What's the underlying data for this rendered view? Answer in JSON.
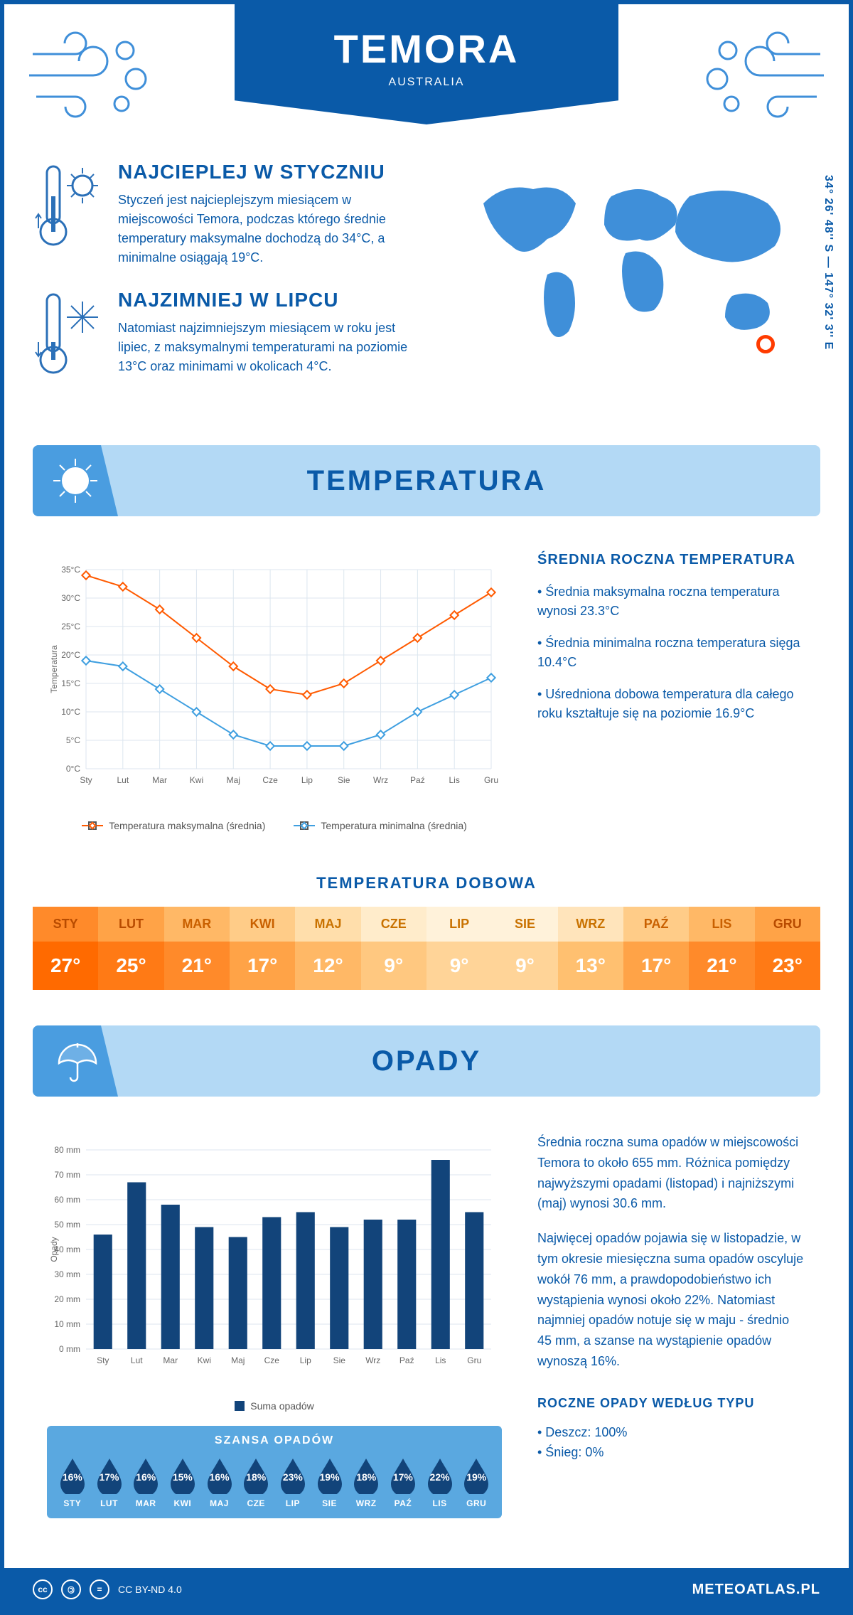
{
  "header": {
    "title": "TEMORA",
    "subtitle": "AUSTRALIA",
    "coords": "34° 26' 48'' S — 147° 32' 3'' E",
    "marker_pos": {
      "left_pct": 83,
      "top_pct": 72
    }
  },
  "intro": {
    "hot": {
      "heading": "NAJCIEPLEJ W STYCZNIU",
      "text": "Styczeń jest najcieplejszym miesiącem w miejscowości Temora, podczas którego średnie temperatury maksymalne dochodzą do 34°C, a minimalne osiągają 19°C."
    },
    "cold": {
      "heading": "NAJZIMNIEJ W LIPCU",
      "text": "Natomiast najzimniejszym miesiącem w roku jest lipiec, z maksymalnymi temperaturami na poziomie 13°C oraz minimami w okolicach 4°C."
    }
  },
  "temperature": {
    "section_title": "TEMPERATURA",
    "chart": {
      "type": "line",
      "months": [
        "Sty",
        "Lut",
        "Mar",
        "Kwi",
        "Maj",
        "Cze",
        "Lip",
        "Sie",
        "Wrz",
        "Paź",
        "Lis",
        "Gru"
      ],
      "y_label": "Temperatura",
      "y_ticks": [
        0,
        5,
        10,
        15,
        20,
        25,
        30,
        35
      ],
      "y_tick_suffix": "°C",
      "ylim": [
        0,
        35
      ],
      "series": [
        {
          "name": "Temperatura maksymalna (średnia)",
          "color": "#ff5a00",
          "values": [
            34,
            32,
            28,
            23,
            18,
            14,
            13,
            15,
            19,
            23,
            27,
            31
          ]
        },
        {
          "name": "Temperatura minimalna (średnia)",
          "color": "#3f9fe0",
          "values": [
            19,
            18,
            14,
            10,
            6,
            4,
            4,
            4,
            6,
            10,
            13,
            16
          ]
        }
      ],
      "grid_color": "#dce6ef",
      "background": "#ffffff",
      "line_width": 2,
      "marker": "diamond"
    },
    "summary": {
      "heading": "ŚREDNIA ROCZNA TEMPERATURA",
      "bullets": [
        "Średnia maksymalna roczna temperatura wynosi 23.3°C",
        "Średnia minimalna roczna temperatura sięga 10.4°C",
        "Uśredniona dobowa temperatura dla całego roku kształtuje się na poziomie 16.9°C"
      ]
    },
    "daily": {
      "title": "TEMPERATURA DOBOWA",
      "months": [
        "STY",
        "LUT",
        "MAR",
        "KWI",
        "MAJ",
        "CZE",
        "LIP",
        "SIE",
        "WRZ",
        "PAŹ",
        "LIS",
        "GRU"
      ],
      "values": [
        "27°",
        "25°",
        "21°",
        "17°",
        "12°",
        "9°",
        "9°",
        "9°",
        "13°",
        "17°",
        "21°",
        "23°"
      ],
      "header_colors": [
        "#ff8a2a",
        "#ffa347",
        "#ffb866",
        "#ffcc88",
        "#ffdeab",
        "#ffeccb",
        "#fff2da",
        "#fff2da",
        "#ffe4bb",
        "#ffcc88",
        "#ffb866",
        "#ffa347"
      ],
      "value_colors": [
        "#ff6a00",
        "#ff7a15",
        "#ff8a2a",
        "#ffa347",
        "#ffb866",
        "#ffc880",
        "#ffd498",
        "#ffd498",
        "#ffc070",
        "#ffa347",
        "#ff8a2a",
        "#ff7a15"
      ],
      "header_text_colors": [
        "#b84b00",
        "#b84b00",
        "#c96000",
        "#c96000",
        "#c97200",
        "#c97200",
        "#c97200",
        "#c97200",
        "#c97200",
        "#c96000",
        "#c96000",
        "#b84b00"
      ]
    }
  },
  "precipitation": {
    "section_title": "OPADY",
    "chart": {
      "type": "bar",
      "months": [
        "Sty",
        "Lut",
        "Mar",
        "Kwi",
        "Maj",
        "Cze",
        "Lip",
        "Sie",
        "Wrz",
        "Paź",
        "Lis",
        "Gru"
      ],
      "y_label": "Opady",
      "y_ticks": [
        0,
        10,
        20,
        30,
        40,
        50,
        60,
        70,
        80
      ],
      "y_tick_suffix": " mm",
      "ylim": [
        0,
        80
      ],
      "values": [
        46,
        67,
        58,
        49,
        45,
        53,
        55,
        49,
        52,
        52,
        76,
        55
      ],
      "bar_color": "#12447a",
      "grid_color": "#dce6ef",
      "bar_width": 0.55,
      "legend_label": "Suma opadów"
    },
    "text": {
      "p1": "Średnia roczna suma opadów w miejscowości Temora to około 655 mm. Różnica pomiędzy najwyższymi opadami (listopad) i najniższymi (maj) wynosi 30.6 mm.",
      "p2": "Najwięcej opadów pojawia się w listopadzie, w tym okresie miesięczna suma opadów oscyluje wokół 76 mm, a prawdopodobieństwo ich wystąpienia wynosi około 22%. Natomiast najmniej opadów notuje się w maju - średnio 45 mm, a szanse na wystąpienie opadów wynoszą 16%.",
      "type_heading": "ROCZNE OPADY WEDŁUG TYPU",
      "type_bullets": [
        "Deszcz: 100%",
        "Śnieg: 0%"
      ]
    },
    "chance": {
      "title": "SZANSA OPADÓW",
      "months": [
        "STY",
        "LUT",
        "MAR",
        "KWI",
        "MAJ",
        "CZE",
        "LIP",
        "SIE",
        "WRZ",
        "PAŹ",
        "LIS",
        "GRU"
      ],
      "values": [
        "16%",
        "17%",
        "16%",
        "15%",
        "16%",
        "18%",
        "23%",
        "19%",
        "18%",
        "17%",
        "22%",
        "19%"
      ],
      "drop_fill": "#12447a",
      "panel_bg": "#5aa8e0"
    }
  },
  "footer": {
    "license": "CC BY-ND 4.0",
    "site": "METEOATLAS.PL"
  },
  "colors": {
    "primary": "#0a5aa8",
    "sky": "#b3d9f5",
    "accent": "#4a9de0"
  }
}
